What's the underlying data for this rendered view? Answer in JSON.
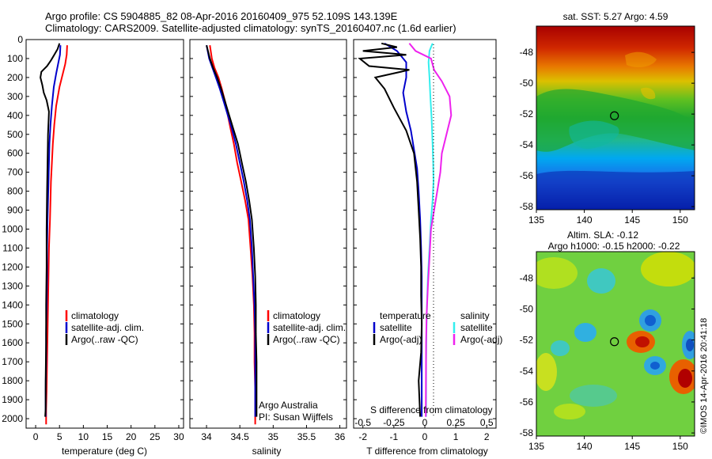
{
  "title_line1": "Argo profile: CS 5904885_82 08-Apr-2016 20160409_975 52.109S 143.139E",
  "title_line2": "Climatology: CARS2009. Satellite-adjusted climatology: synTS_20160407.nc (1.6d earlier)",
  "credit_line1": "Argo Australia",
  "credit_line2": "PI: Susan Wijffels",
  "stamp": "©IMOS 14-Apr-2016 20:41:18",
  "colors": {
    "climatology": "#ff0000",
    "satellite": "#0000cc",
    "argo": "#000000",
    "satellite_s": "#33eeee",
    "argo_s": "#ee22ee"
  },
  "chart_data": [
    {
      "type": "line",
      "name": "temperature",
      "xlabel": "temperature (deg C)",
      "ylabel": "",
      "xlim": [
        -2,
        31
      ],
      "ylim": [
        2050,
        0
      ],
      "xticks": [
        "0",
        "5",
        "10",
        "15",
        "20",
        "25",
        "30"
      ],
      "yticks": [
        "0",
        "100",
        "200",
        "300",
        "400",
        "500",
        "600",
        "700",
        "800",
        "900",
        "1000",
        "1100",
        "1200",
        "1300",
        "1400",
        "1500",
        "1600",
        "1700",
        "1800",
        "1900",
        "2000"
      ],
      "legend": {
        "position": "lower-middle",
        "entries": [
          "climatology",
          "satellite-adj. clim.",
          "Argo(..raw -QC)"
        ]
      },
      "series": [
        {
          "name": "climatology",
          "x": [
            6.6,
            6.5,
            6.2,
            5.7,
            5.0,
            4.3,
            3.9,
            3.6,
            3.4,
            3.2,
            3.1,
            3.0,
            2.8,
            2.7,
            2.6,
            2.5,
            2.4,
            2.3,
            2.2,
            2.2
          ],
          "y": [
            30,
            80,
            130,
            180,
            250,
            350,
            450,
            550,
            650,
            750,
            850,
            950,
            1100,
            1250,
            1400,
            1550,
            1700,
            1850,
            1950,
            2030
          ]
        },
        {
          "name": "satellite-adj. clim.",
          "x": [
            5.2,
            5.1,
            4.7,
            4.3,
            3.8,
            3.4,
            3.1,
            2.9,
            2.8,
            2.7,
            2.6,
            2.5,
            2.4,
            2.4,
            2.3,
            2.2,
            2.2,
            2.1,
            2.1
          ],
          "y": [
            30,
            80,
            130,
            180,
            250,
            350,
            450,
            550,
            650,
            750,
            850,
            950,
            1100,
            1250,
            1400,
            1550,
            1700,
            1850,
            1990
          ]
        },
        {
          "name": "Argo(..raw -QC)",
          "x": [
            5.0,
            4.6,
            3.9,
            3.2,
            2.4,
            1.2,
            1.0,
            1.4,
            1.7,
            2.3,
            2.8,
            2.6,
            2.5,
            2.4,
            2.3,
            2.3,
            2.2,
            2.2,
            2.1,
            2.1,
            2.0
          ],
          "y": [
            20,
            50,
            80,
            110,
            140,
            170,
            200,
            240,
            280,
            320,
            380,
            500,
            650,
            800,
            1000,
            1200,
            1400,
            1600,
            1800,
            1950,
            1990
          ]
        }
      ]
    },
    {
      "type": "line",
      "name": "salinity",
      "xlabel": "salinity",
      "ylabel": "",
      "xlim": [
        33.75,
        36.1
      ],
      "ylim": [
        2050,
        0
      ],
      "xticks": [
        "34",
        "34.5",
        "35",
        "35.5",
        "36"
      ],
      "legend": {
        "position": "lower-middle",
        "entries": [
          "climatology",
          "satellite-adj. clim.",
          "Argo(..raw -QC)"
        ]
      },
      "series": [
        {
          "name": "climatology",
          "x": [
            34.05,
            34.08,
            34.12,
            34.18,
            34.23,
            34.28,
            34.32,
            34.36,
            34.41,
            34.46,
            34.52,
            34.58,
            34.63,
            34.66,
            34.69,
            34.71,
            34.72,
            34.72,
            34.73,
            34.73
          ],
          "y": [
            30,
            100,
            150,
            200,
            260,
            330,
            400,
            470,
            550,
            650,
            750,
            850,
            950,
            1100,
            1250,
            1400,
            1550,
            1700,
            1850,
            2030
          ]
        },
        {
          "name": "satellite-adj. clim.",
          "x": [
            34.0,
            34.04,
            34.09,
            34.14,
            34.2,
            34.26,
            34.32,
            34.38,
            34.44,
            34.5,
            34.56,
            34.61,
            34.65,
            34.68,
            34.7,
            34.72,
            34.73,
            34.73,
            34.73
          ],
          "y": [
            30,
            100,
            150,
            200,
            260,
            330,
            400,
            470,
            550,
            650,
            750,
            850,
            950,
            1100,
            1250,
            1400,
            1550,
            1700,
            1990
          ]
        },
        {
          "name": "Argo(..raw -QC)",
          "x": [
            34.0,
            34.05,
            34.1,
            34.16,
            34.22,
            34.28,
            34.34,
            34.4,
            34.47,
            34.53,
            34.59,
            34.64,
            34.68,
            34.71,
            34.73,
            34.74,
            34.74,
            34.75,
            34.75
          ],
          "y": [
            30,
            100,
            150,
            200,
            260,
            330,
            400,
            470,
            550,
            650,
            750,
            850,
            950,
            1100,
            1250,
            1400,
            1550,
            1700,
            1990
          ]
        }
      ]
    },
    {
      "type": "line",
      "name": "difference from climatology",
      "xlabel": "T difference from climatology",
      "xlabel_top": "S difference from climatology",
      "xlim": [
        -2.3,
        2.3
      ],
      "ylim": [
        2050,
        0
      ],
      "xticks": [
        "-2",
        "-1",
        "0",
        "1",
        "2"
      ],
      "xticks_s": [
        "-0.5",
        "-0.25",
        "0",
        "0.25",
        "0.5"
      ],
      "legend": {
        "position": "lower",
        "entries": [
          "temperature",
          "satellite",
          "Argo(-adj)",
          "salinity",
          "satellite",
          "Argo(-adj)"
        ]
      },
      "series": [
        {
          "name": "temperature satellite",
          "x": [
            -1.3,
            -0.9,
            -0.6,
            -0.6,
            -0.7,
            -0.6,
            -0.45,
            -0.35,
            -0.25,
            -0.2,
            -0.15,
            -0.12,
            -0.1,
            -0.1,
            -0.1,
            -0.1,
            -0.1,
            -0.1
          ],
          "y": [
            20,
            60,
            120,
            200,
            280,
            380,
            480,
            580,
            680,
            800,
            950,
            1100,
            1250,
            1400,
            1550,
            1700,
            1850,
            1990
          ]
        },
        {
          "name": "temperature Argo(-adj)",
          "x": [
            -1.4,
            -0.9,
            -2.0,
            -0.6,
            -2.1,
            -1.8,
            -0.5,
            -1.6,
            -1.3,
            -1.0,
            -0.6,
            -0.35,
            -0.25,
            -0.2,
            -0.15,
            -0.12,
            -0.12,
            -0.1,
            -0.12,
            -0.2,
            -0.15
          ],
          "y": [
            20,
            40,
            60,
            80,
            100,
            140,
            160,
            200,
            260,
            360,
            480,
            600,
            750,
            900,
            1050,
            1200,
            1350,
            1500,
            1650,
            1800,
            1990
          ]
        },
        {
          "name": "salinity satellite",
          "x": [
            0.25,
            0.15,
            0.12,
            0.15,
            0.18,
            0.22,
            0.25,
            0.27,
            0.28,
            0.25,
            0.2,
            0.15,
            0.1,
            0.07,
            0.05,
            0.04,
            0.04
          ],
          "y": [
            20,
            60,
            120,
            200,
            300,
            420,
            550,
            650,
            750,
            850,
            950,
            1100,
            1250,
            1400,
            1550,
            1700,
            1990
          ]
        },
        {
          "name": "salinity Argo(-adj)",
          "x": [
            -0.5,
            -0.3,
            0.2,
            0.3,
            0.55,
            0.8,
            0.85,
            0.7,
            0.55,
            0.5,
            0.4,
            0.3,
            0.2,
            0.15,
            0.1,
            0.06,
            0.04,
            0.03
          ],
          "y": [
            20,
            60,
            100,
            160,
            220,
            300,
            400,
            500,
            600,
            700,
            800,
            900,
            1000,
            1150,
            1300,
            1450,
            1600,
            1990
          ]
        }
      ]
    },
    {
      "type": "heatmap",
      "name": "sea surface temperature map",
      "title": "sat. SST: 5.27 Argo: 4.59",
      "xticks": [
        "135",
        "140",
        "145",
        "150"
      ],
      "yticks": [
        "-48",
        "-50",
        "-52",
        "-54",
        "-56",
        "-58"
      ],
      "xlim": [
        135,
        151.5
      ],
      "ylim": [
        -58.2,
        -46.3
      ],
      "marker": {
        "lon": 143.139,
        "lat": -52.109
      }
    },
    {
      "type": "heatmap",
      "name": "sea level anomaly map",
      "title": "Altim. SLA: -0.12",
      "subtitle": "Argo h1000: -0.15 h2000: -0.22",
      "xticks": [
        "135",
        "140",
        "145",
        "150"
      ],
      "yticks": [
        "-48",
        "-50",
        "-52",
        "-54",
        "-56",
        "-58"
      ],
      "xlim": [
        135,
        151.5
      ],
      "ylim": [
        -58.2,
        -46.3
      ],
      "marker": {
        "lon": 143.139,
        "lat": -52.109
      }
    }
  ]
}
